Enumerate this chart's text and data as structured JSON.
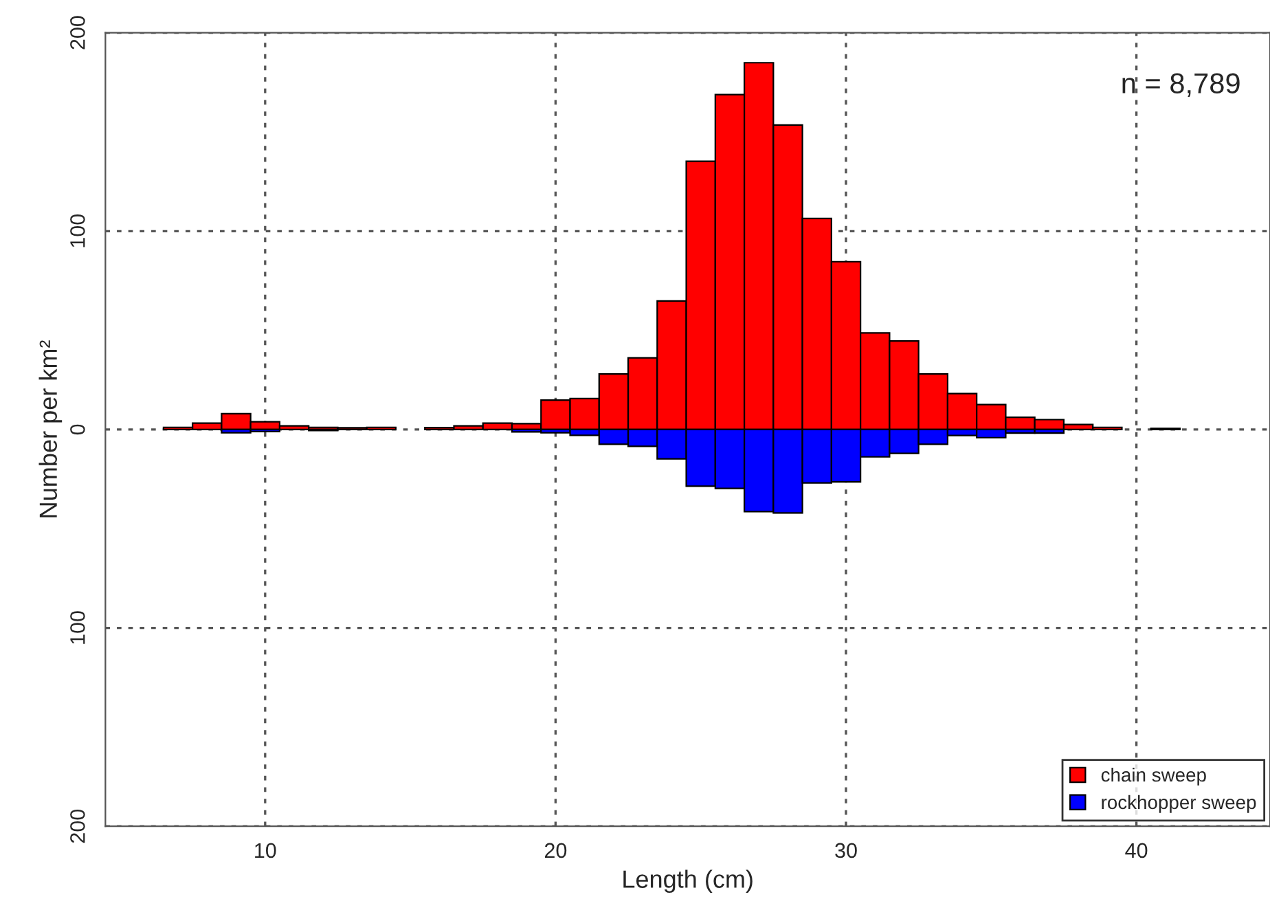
{
  "chart_data": {
    "type": "bar",
    "xlabel": "Length (cm)",
    "ylabel": "Number per km²",
    "stacked": true,
    "x": [
      7,
      8,
      9,
      10,
      11,
      12,
      13,
      14,
      15,
      16,
      17,
      18,
      19,
      20,
      21,
      22,
      23,
      24,
      25,
      26,
      27,
      28,
      29,
      30,
      31,
      32,
      33,
      34,
      35,
      36,
      37,
      38,
      39,
      40,
      41
    ],
    "series": [
      {
        "name": "chain sweep",
        "color": "#ff0000",
        "values": [
          1.1,
          3.2,
          8.0,
          3.9,
          1.8,
          1.1,
          0.9,
          1.1,
          null,
          1.0,
          1.8,
          3.2,
          3.0,
          14.8,
          15.6,
          28.0,
          36.1,
          64.8,
          135.2,
          168.8,
          184.9,
          153.5,
          106.4,
          84.6,
          48.7,
          44.6,
          28.0,
          18.1,
          12.6,
          6.2,
          5.0,
          2.5,
          1.1,
          null,
          0.5
        ]
      },
      {
        "name": "rockhopper sweep",
        "color": "#0000ff",
        "values": [
          null,
          null,
          -1.6,
          -1.0,
          null,
          -0.5,
          null,
          null,
          null,
          null,
          null,
          null,
          -1.2,
          -1.6,
          -2.9,
          -7.4,
          -8.5,
          -14.8,
          -28.6,
          -29.7,
          -41.4,
          -42.1,
          -26.9,
          -26.4,
          -13.8,
          -12.0,
          -7.4,
          -3.0,
          -4.1,
          -1.8,
          -1.8,
          null,
          null,
          null,
          null
        ]
      }
    ],
    "xlim": [
      4.5,
      44.6
    ],
    "xticks": [
      10,
      20,
      30,
      40
    ],
    "ylim": [
      -200,
      200
    ],
    "yticks": [
      {
        "value": -200,
        "label": "200"
      },
      {
        "value": -100,
        "label": "100"
      },
      0,
      100,
      200
    ],
    "grid": true,
    "legend": "bottom right",
    "annotations": [
      "n = 8,789"
    ]
  }
}
